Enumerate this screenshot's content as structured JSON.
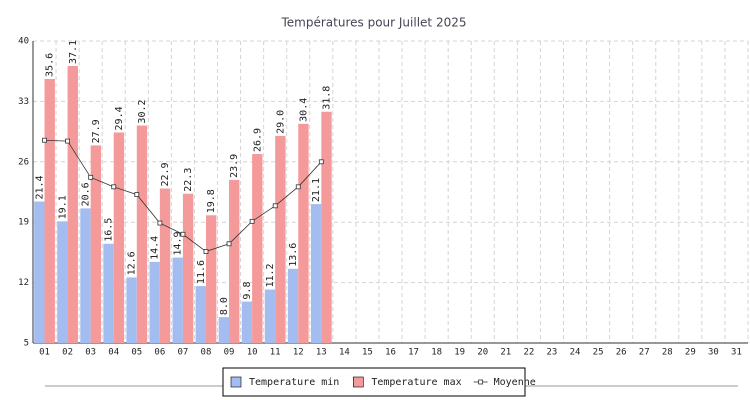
{
  "chart_data": {
    "type": "bar",
    "title": "Températures pour Juillet 2025",
    "categories": [
      "01",
      "02",
      "03",
      "04",
      "05",
      "06",
      "07",
      "08",
      "09",
      "10",
      "11",
      "12",
      "13",
      "14",
      "15",
      "16",
      "17",
      "18",
      "19",
      "20",
      "21",
      "22",
      "23",
      "24",
      "25",
      "26",
      "27",
      "28",
      "29",
      "30",
      "31"
    ],
    "series": [
      {
        "name": "Temperature min",
        "type": "bar",
        "color": "#a3bdf0",
        "values": [
          21.4,
          19.1,
          20.6,
          16.5,
          12.6,
          14.4,
          14.9,
          11.6,
          8.0,
          9.8,
          11.2,
          13.6,
          21.1,
          null,
          null,
          null,
          null,
          null,
          null,
          null,
          null,
          null,
          null,
          null,
          null,
          null,
          null,
          null,
          null,
          null,
          null
        ],
        "value_labels": [
          "21.4",
          "19.1",
          "20.6",
          "16.5",
          "12.6",
          "14.4",
          "14.9",
          "11.6",
          "8.0",
          "9.8",
          "11.2",
          "13.6",
          "21.1",
          null,
          null,
          null,
          null,
          null,
          null,
          null,
          null,
          null,
          null,
          null,
          null,
          null,
          null,
          null,
          null,
          null,
          null
        ]
      },
      {
        "name": "Temperature max",
        "type": "bar",
        "color": "#f59a9a",
        "values": [
          35.6,
          37.1,
          27.9,
          29.4,
          30.2,
          22.9,
          22.3,
          19.8,
          23.9,
          26.9,
          29.0,
          30.4,
          31.8,
          null,
          null,
          null,
          null,
          null,
          null,
          null,
          null,
          null,
          null,
          null,
          null,
          null,
          null,
          null,
          null,
          null,
          null
        ],
        "value_labels": [
          "35.6",
          "37.1",
          "27.9",
          "29.4",
          "30.2",
          "22.9",
          "22.3",
          "19.8",
          "23.9",
          "26.9",
          "29.0",
          "30.4",
          "31.8",
          null,
          null,
          null,
          null,
          null,
          null,
          null,
          null,
          null,
          null,
          null,
          null,
          null,
          null,
          null,
          null,
          null,
          null
        ]
      },
      {
        "name": "Moyenne",
        "type": "line",
        "color": "#333333",
        "values": [
          28.5,
          28.4,
          24.2,
          23.1,
          22.2,
          18.9,
          17.6,
          15.6,
          16.5,
          19.1,
          20.9,
          23.1,
          26.0,
          null,
          null,
          null,
          null,
          null,
          null,
          null,
          null,
          null,
          null,
          null,
          null,
          null,
          null,
          null,
          null,
          null,
          null
        ]
      }
    ],
    "ylim": [
      5,
      40
    ],
    "yticks": [
      5,
      12,
      19,
      26,
      33,
      40
    ],
    "grid": true,
    "legend": "bottom"
  }
}
